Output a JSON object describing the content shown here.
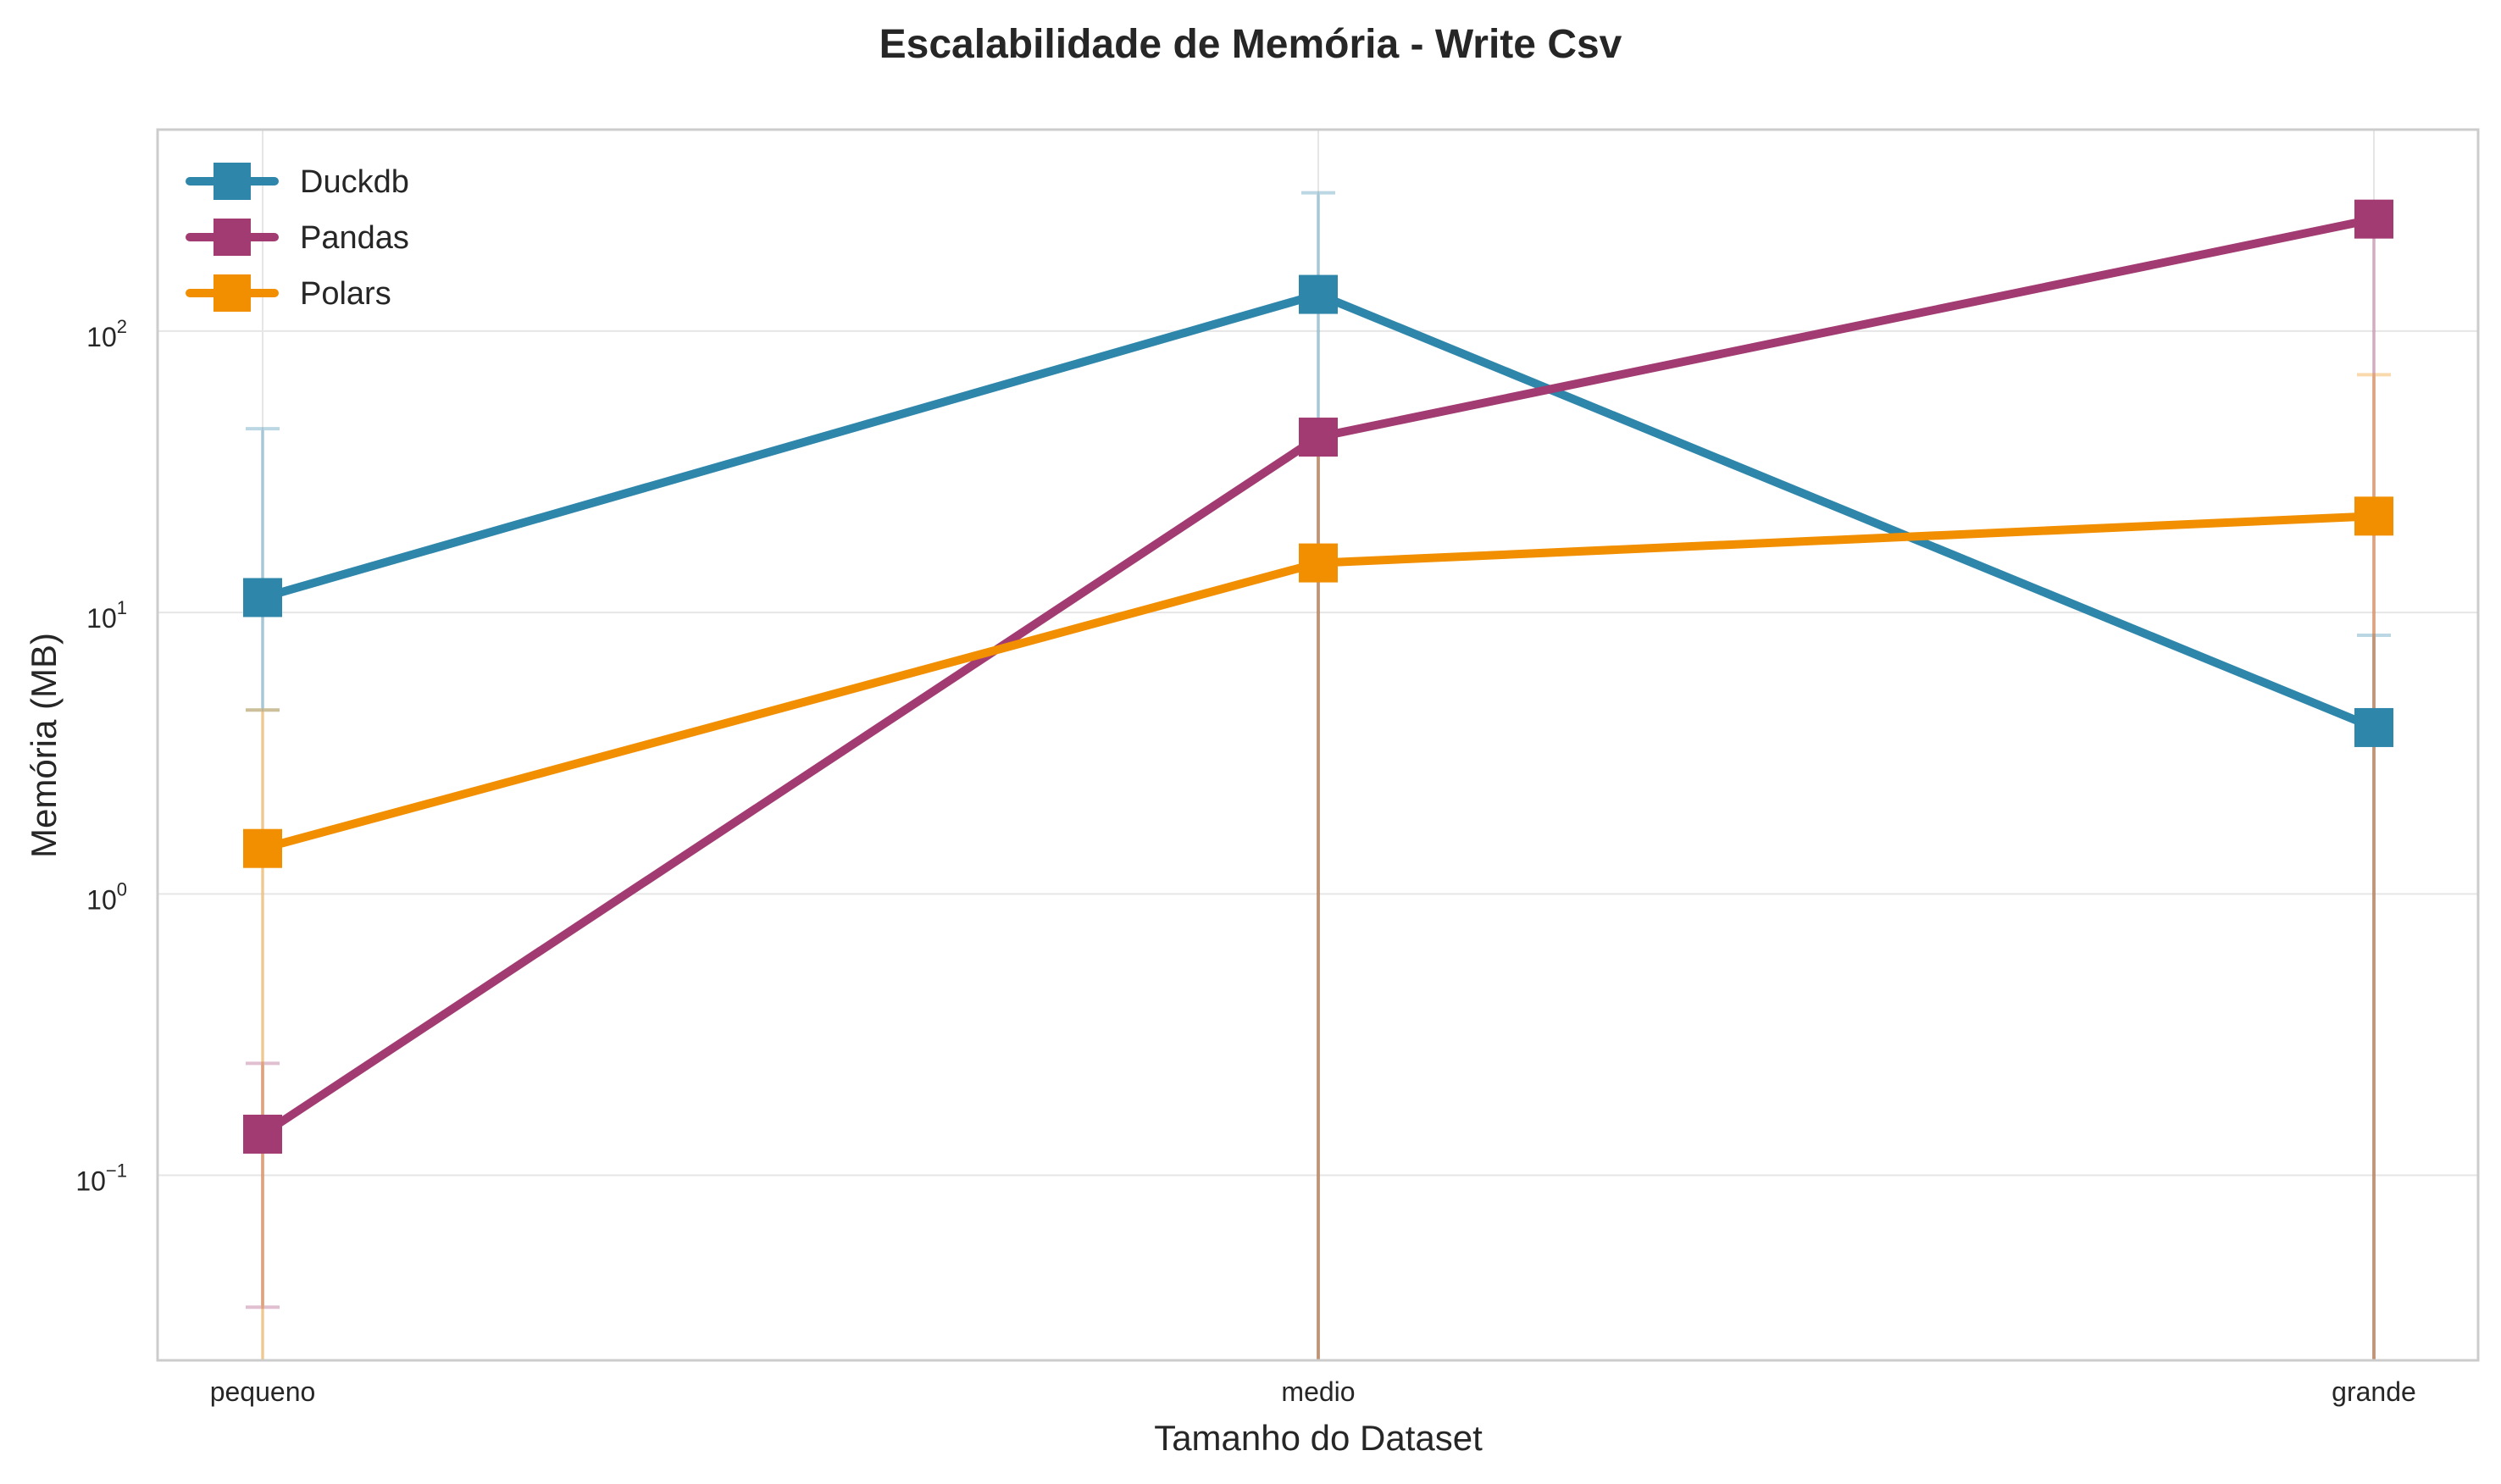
{
  "chart_data": {
    "type": "line",
    "title": "Escalabilidade de Memória - Write Csv",
    "xlabel": "Tamanho do Dataset",
    "ylabel": "Memória (MB)",
    "categories": [
      "pequeno",
      "medio",
      "grande"
    ],
    "yscale": "log",
    "ylim": [
      0.022,
      520
    ],
    "yticks": [
      {
        "value": 0.1,
        "base": "10",
        "exp": "−1"
      },
      {
        "value": 1,
        "base": "10",
        "exp": "0"
      },
      {
        "value": 10,
        "base": "10",
        "exp": "1"
      },
      {
        "value": 100,
        "base": "10",
        "exp": "2"
      }
    ],
    "grid": true,
    "legend_position": "upper-left",
    "marker": "square",
    "series": [
      {
        "name": "Duckdb",
        "color": "#2E86AB",
        "values": [
          11.3,
          135,
          3.9
        ],
        "err_low": [
          4.5,
          0.022,
          0.022
        ],
        "err_high": [
          45,
          310,
          8.3
        ]
      },
      {
        "name": "Pandas",
        "color": "#A23B72",
        "values": [
          0.14,
          42,
          250
        ],
        "err_low": [
          0.034,
          0.022,
          0.022
        ],
        "err_high": [
          0.25,
          42,
          250
        ]
      },
      {
        "name": "Polars",
        "color": "#F18F01",
        "values": [
          1.45,
          15,
          22
        ],
        "err_low": [
          0.022,
          0.022,
          0.022
        ],
        "err_high": [
          4.5,
          38,
          70
        ]
      }
    ]
  }
}
